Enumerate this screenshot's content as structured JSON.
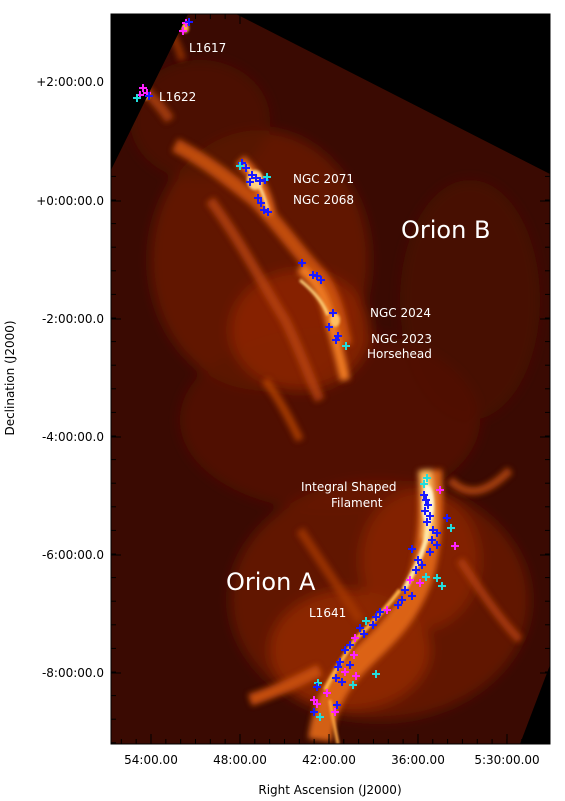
{
  "axes": {
    "xlabel": "Right Ascension (J2000)",
    "ylabel": "Declination (J2000)",
    "x_ticks": [
      "54:00.00",
      "48:00.00",
      "42:00.00",
      "36:00.00",
      "5:30:00.00"
    ],
    "y_ticks": [
      "+2:00:00.0",
      "+0:00:00.0",
      "-2:00:00.0",
      "-4:00:00.0",
      "-6:00:00.0",
      "-8:00:00.0"
    ]
  },
  "labels": {
    "l1617": "L1617",
    "l1622": "L1622",
    "ngc2071": "NGC 2071",
    "ngc2068": "NGC 2068",
    "orion_b": "Orion B",
    "ngc2024": "NGC 2024",
    "ngc2023": "NGC 2023",
    "horsehead": "Horsehead",
    "isf1": "Integral Shaped",
    "isf2": "Filament",
    "orion_a": "Orion A",
    "l1641": "L1641"
  },
  "colors": {
    "background": "#000000",
    "cloud_dark": "#3a0a02",
    "cloud_mid": "#a32a05",
    "cloud_bright": "#ff9a2a",
    "marker_blue": "#1a1aff",
    "marker_magenta": "#ff22ff",
    "marker_cyan": "#22dddd"
  }
}
